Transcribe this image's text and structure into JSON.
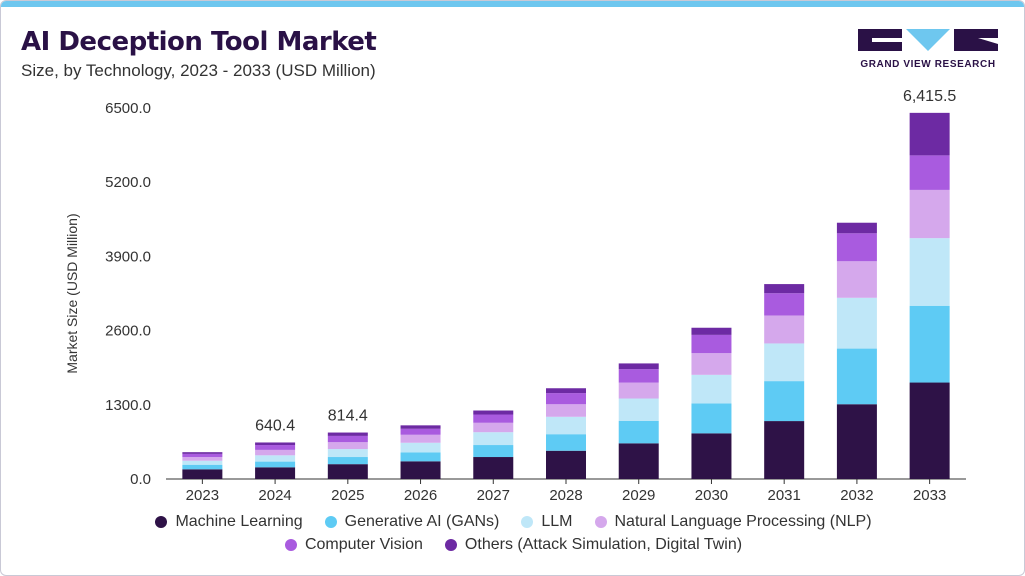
{
  "title": "AI Deception Tool Market",
  "subtitle": "Size, by Technology, 2023 - 2033 (USD Million)",
  "brand": "GRAND VIEW RESEARCH",
  "colors": {
    "accent_bar": "#6ec7ef",
    "logo_dark": "#2a1146",
    "logo_light": "#6ec7ef"
  },
  "chart_data": {
    "type": "bar",
    "stacked": true,
    "categories": [
      "2023",
      "2024",
      "2025",
      "2026",
      "2027",
      "2028",
      "2029",
      "2030",
      "2031",
      "2032",
      "2033"
    ],
    "ylabel": "Market Size (USD Million)",
    "xlabel": "",
    "ylim": [
      0,
      6500
    ],
    "yticks": [
      "0.0",
      "1300.0",
      "2600.0",
      "3900.0",
      "5200.0",
      "6500.0"
    ],
    "grid": false,
    "legend_position": "bottom",
    "series": [
      {
        "name": "Machine Learning",
        "color": "#2e1247",
        "values": [
          170,
          205,
          260,
          310,
          385,
          495,
          625,
          800,
          1015,
          1310,
          1690
        ]
      },
      {
        "name": "Generative AI (GANs)",
        "color": "#5ecbf4",
        "values": [
          80,
          100,
          125,
          155,
          210,
          290,
          395,
          525,
          700,
          975,
          1345
        ]
      },
      {
        "name": "LLM",
        "color": "#bfe7f8",
        "values": [
          70,
          110,
          140,
          170,
          225,
          305,
          390,
          500,
          660,
          890,
          1185
        ]
      },
      {
        "name": "Natural Language Processing (NLP)",
        "color": "#d5a8ec",
        "values": [
          65,
          95,
          120,
          140,
          165,
          220,
          280,
          380,
          490,
          640,
          845
        ]
      },
      {
        "name": "Computer Vision",
        "color": "#a95bdf",
        "values": [
          55,
          85,
          110,
          105,
          145,
          195,
          235,
          320,
          390,
          490,
          605
        ]
      },
      {
        "name": "Others (Attack Simulation, Digital Twin)",
        "color": "#6d2aa3",
        "values": [
          30,
          45,
          59,
          60,
          70,
          85,
          100,
          125,
          160,
          185,
          745
        ]
      }
    ],
    "annotations": [
      {
        "category": "2024",
        "text": "640.4"
      },
      {
        "category": "2025",
        "text": "814.4"
      },
      {
        "category": "2033",
        "text": "6,415.5"
      }
    ]
  }
}
